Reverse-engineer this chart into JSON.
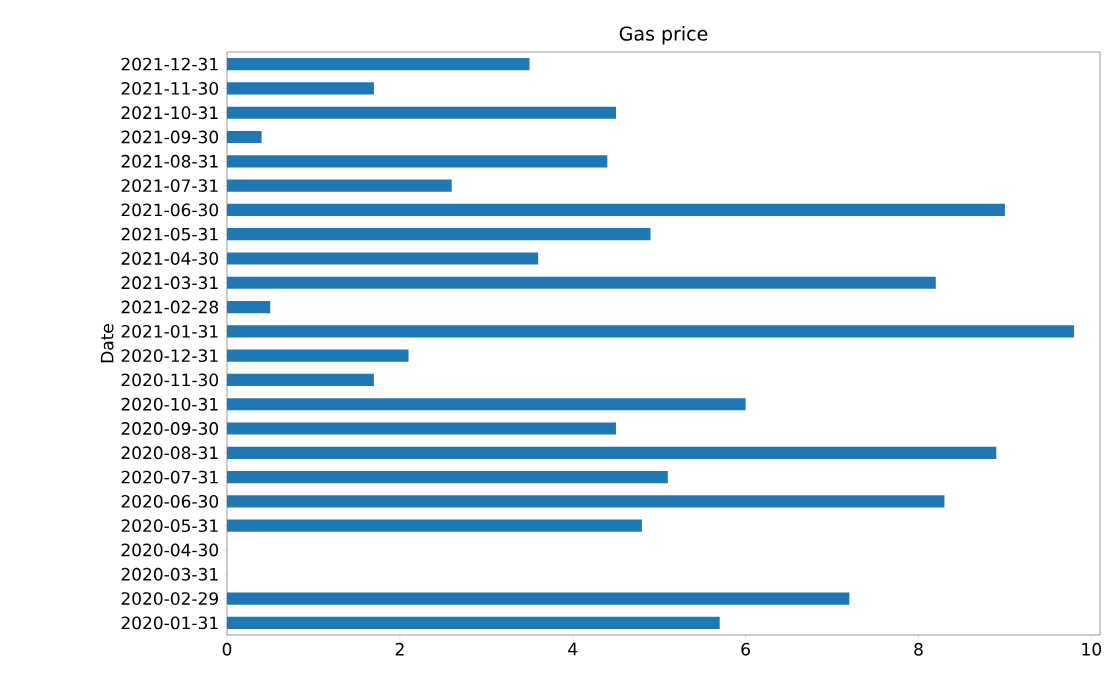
{
  "chart_data": {
    "type": "bar",
    "orientation": "horizontal",
    "title": "Gas price",
    "ylabel": "Date",
    "categories": [
      "2021-12-31",
      "2021-11-30",
      "2021-10-31",
      "2021-09-30",
      "2021-08-31",
      "2021-07-31",
      "2021-06-30",
      "2021-05-31",
      "2021-04-30",
      "2021-03-31",
      "2021-02-28",
      "2021-01-31",
      "2020-12-31",
      "2020-11-30",
      "2020-10-31",
      "2020-09-30",
      "2020-08-31",
      "2020-07-31",
      "2020-06-30",
      "2020-05-31",
      "2020-04-30",
      "2020-03-31",
      "2020-02-29",
      "2020-01-31"
    ],
    "values": [
      3.5,
      1.7,
      4.5,
      0.4,
      4.4,
      2.6,
      9.0,
      4.9,
      3.6,
      8.2,
      0.5,
      9.8,
      2.1,
      1.7,
      6.0,
      4.5,
      8.9,
      5.1,
      8.3,
      4.8,
      null,
      null,
      7.2,
      5.7
    ],
    "color": "#1f77b4",
    "xlim": [
      0,
      10.1
    ],
    "xticks": [
      0,
      2,
      4,
      6,
      8,
      10
    ]
  }
}
